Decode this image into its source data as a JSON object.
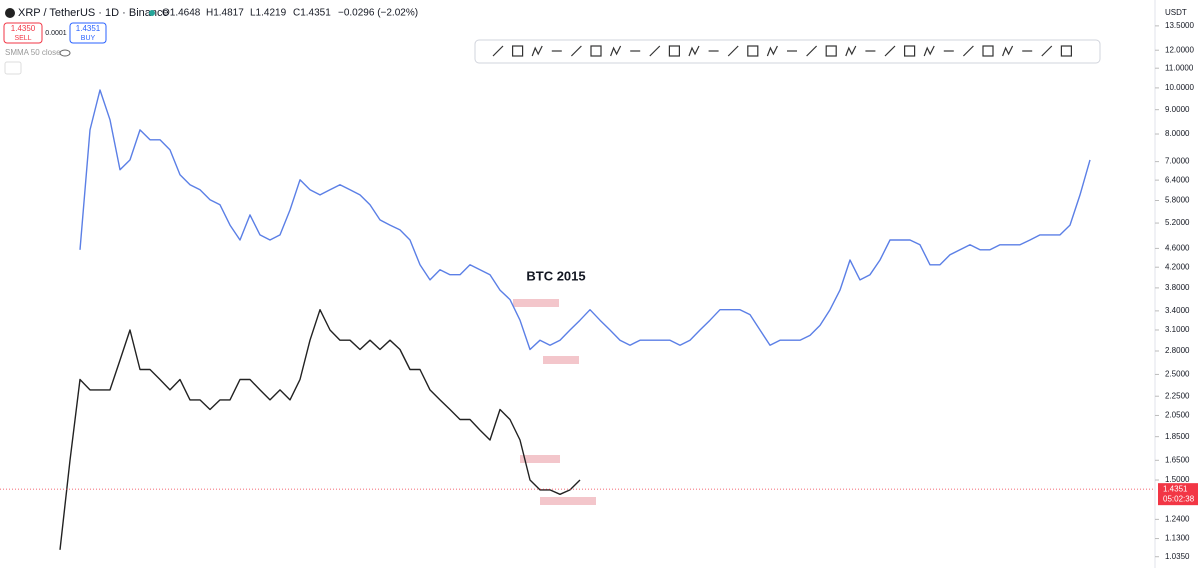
{
  "header": {
    "symbol": "XRP / TetherUS · 1D · Binance",
    "open": "O1.4648",
    "high": "H1.4817",
    "low": "L1.4219",
    "close": "C1.4351",
    "change": "−0.0296 (−2.02%)",
    "sell_price": "1.4350",
    "sell": "SELL",
    "spread": "0.0001",
    "buy_price": "1.4351",
    "buy": "BUY",
    "indicator": "SMMA 50 close",
    "currency": "USDT",
    "countdown": "05:02:38"
  },
  "chart_data": {
    "type": "line",
    "log_scale": true,
    "annotation": "BTC 2015",
    "ylim": [
      0.98,
      15.3
    ],
    "yticks": [
      {
        "value": 13.5,
        "label": "13.5000"
      },
      {
        "value": 12,
        "label": "12.0000"
      },
      {
        "value": 11,
        "label": "11.0000"
      },
      {
        "value": 10,
        "label": "10.0000"
      },
      {
        "value": 9,
        "label": "9.0000"
      },
      {
        "value": 8,
        "label": "8.0000"
      },
      {
        "value": 7,
        "label": "7.0000"
      },
      {
        "value": 6.4,
        "label": "6.4000"
      },
      {
        "value": 5.8,
        "label": "5.8000"
      },
      {
        "value": 5.2,
        "label": "5.2000"
      },
      {
        "value": 4.6,
        "label": "4.6000"
      },
      {
        "value": 4.2,
        "label": "4.2000"
      },
      {
        "value": 3.8,
        "label": "3.8000"
      },
      {
        "value": 3.4,
        "label": "3.4000"
      },
      {
        "value": 3.1,
        "label": "3.1000"
      },
      {
        "value": 2.8,
        "label": "2.8000"
      },
      {
        "value": 2.5,
        "label": "2.5000"
      },
      {
        "value": 2.25,
        "label": "2.2500"
      },
      {
        "value": 2.05,
        "label": "2.0500"
      },
      {
        "value": 1.85,
        "label": "1.8500"
      },
      {
        "value": 1.65,
        "label": "1.6500"
      },
      {
        "value": 1.5,
        "label": "1.5000"
      },
      {
        "value": 1.24,
        "label": "1.2400"
      },
      {
        "value": 1.13,
        "label": "1.1300"
      },
      {
        "value": 1.035,
        "label": "1.0350"
      }
    ],
    "last_price": {
      "value": 1.4351,
      "label": "1.4351"
    },
    "series": [
      {
        "color": "#5b7fe6",
        "values": [
          4.57,
          8.16,
          9.9,
          8.57,
          6.73,
          7.06,
          8.16,
          7.78,
          7.78,
          7.41,
          6.57,
          6.26,
          6.11,
          5.82,
          5.68,
          5.15,
          4.79,
          5.41,
          4.91,
          4.79,
          4.91,
          5.54,
          6.41,
          6.11,
          5.96,
          6.11,
          6.26,
          6.11,
          5.96,
          5.68,
          5.28,
          5.15,
          5.03,
          4.79,
          4.25,
          3.95,
          4.15,
          4.05,
          4.05,
          4.25,
          4.15,
          4.05,
          3.76,
          3.59,
          3.25,
          2.82,
          2.95,
          2.88,
          2.95,
          3.1,
          3.25,
          3.42,
          3.25,
          3.1,
          2.95,
          2.88,
          2.95,
          2.95,
          2.95,
          2.95,
          2.88,
          2.95,
          3.1,
          3.25,
          3.42,
          3.42,
          3.42,
          3.34,
          3.1,
          2.88,
          2.95,
          2.95,
          2.95,
          3.02,
          3.17,
          3.42,
          3.76,
          4.35,
          3.95,
          4.05,
          4.35,
          4.79,
          4.79,
          4.79,
          4.68,
          4.25,
          4.25,
          4.46,
          4.57,
          4.68,
          4.57,
          4.57,
          4.68,
          4.68,
          4.68,
          4.79,
          4.91,
          4.91,
          4.91,
          5.15,
          5.96,
          7.06
        ]
      },
      {
        "color": "#222222",
        "values": [
          1.07,
          1.65,
          2.44,
          2.32,
          2.32,
          2.32,
          2.68,
          3.1,
          2.56,
          2.56,
          2.44,
          2.32,
          2.44,
          2.21,
          2.21,
          2.11,
          2.21,
          2.21,
          2.44,
          2.44,
          2.32,
          2.21,
          2.32,
          2.21,
          2.44,
          2.95,
          3.42,
          3.1,
          2.95,
          2.95,
          2.82,
          2.95,
          2.82,
          2.95,
          2.82,
          2.56,
          2.56,
          2.32,
          2.21,
          2.11,
          2.01,
          2.01,
          1.91,
          1.82,
          2.11,
          2.01,
          1.82,
          1.5,
          1.43,
          1.43,
          1.4,
          1.43,
          1.5
        ]
      }
    ]
  }
}
